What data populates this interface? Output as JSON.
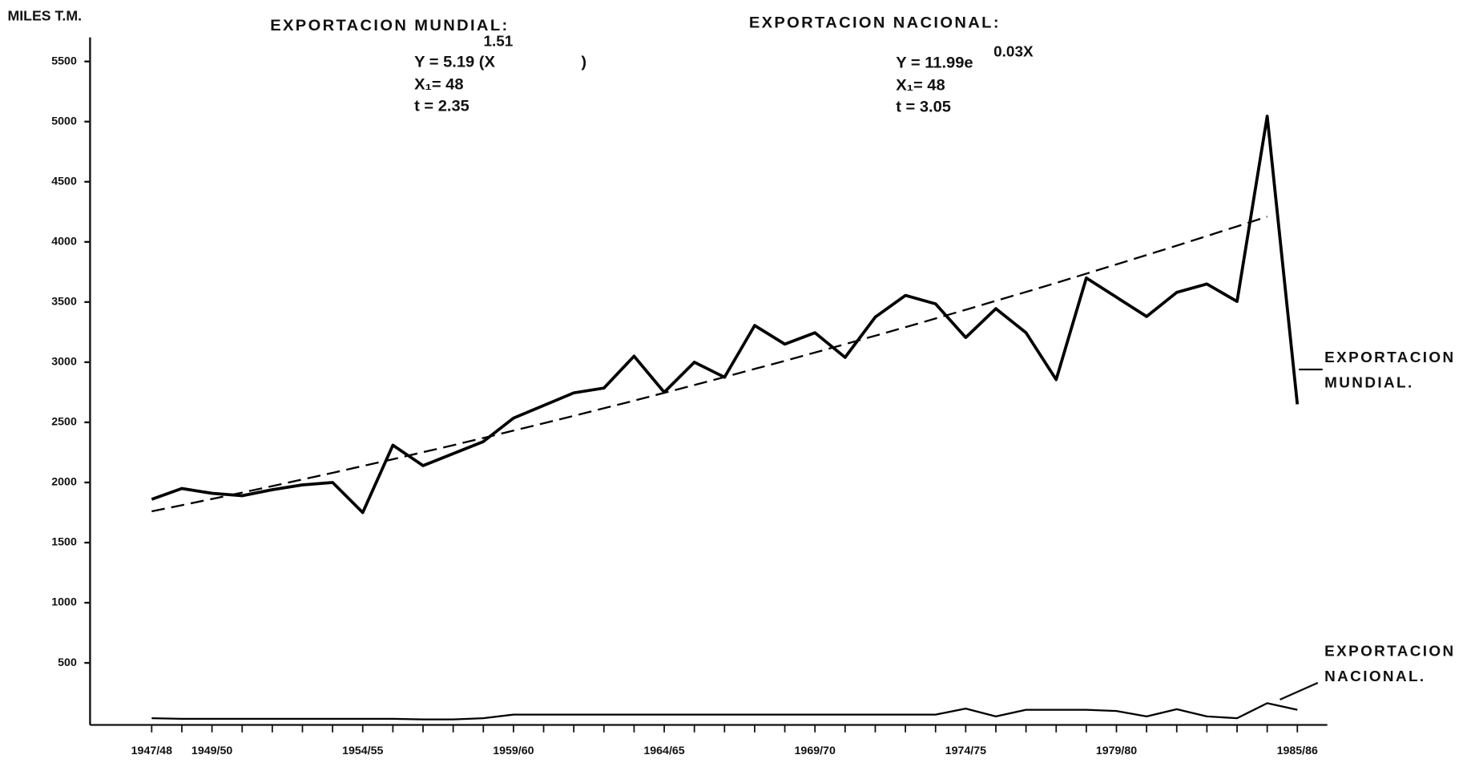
{
  "chart_data": {
    "type": "line",
    "y_label": "MILES T.M.",
    "categories": [
      "1947/48",
      null,
      "1949/50",
      null,
      null,
      null,
      null,
      "1954/55",
      null,
      null,
      null,
      null,
      "1959/60",
      null,
      null,
      null,
      null,
      "1964/65",
      null,
      null,
      null,
      null,
      "1969/70",
      null,
      null,
      null,
      null,
      "1974/75",
      null,
      null,
      null,
      null,
      "1979/80",
      null,
      null,
      null,
      null,
      null,
      "1985/86"
    ],
    "ylim": [
      0,
      5700
    ],
    "yticks": [
      500,
      1000,
      1500,
      2000,
      2500,
      3000,
      3500,
      4000,
      4500,
      5000,
      5500
    ],
    "series": [
      {
        "label_lines": [
          "EXPORTACION",
          "MUNDIAL."
        ],
        "color": "#000000",
        "style": "solid",
        "width": 3.2,
        "values": [
          1860,
          1950,
          1910,
          1890,
          1940,
          1980,
          2000,
          1750,
          2310,
          2140,
          2240,
          2340,
          2535,
          2640,
          2745,
          2785,
          3050,
          2750,
          3000,
          2875,
          3305,
          3150,
          3245,
          3040,
          3375,
          3555,
          3485,
          3205,
          3445,
          3245,
          2855,
          3700,
          3540,
          3380,
          3580,
          3650,
          3505,
          5045,
          2650
        ]
      },
      {
        "color": "#000000",
        "style": "dashed",
        "width": 2,
        "values": [
          1760,
          1811,
          1863,
          1916,
          1970,
          2025,
          2080,
          2137,
          2193,
          2252,
          2310,
          2370,
          2431,
          2492,
          2554,
          2617,
          2680,
          2745,
          2810,
          2876,
          2944,
          3011,
          3080,
          3150,
          3220,
          3291,
          3363,
          3436,
          3510,
          3584,
          3659,
          3736,
          3813,
          3891,
          3969,
          4049,
          4129,
          4210,
          null
        ]
      },
      {
        "label_lines": [
          "EXPORTACION",
          "NACIONAL."
        ],
        "color": "#000000",
        "style": "solid",
        "width": 2,
        "values": [
          40,
          35,
          35,
          35,
          35,
          35,
          35,
          35,
          35,
          30,
          30,
          40,
          70,
          70,
          70,
          70,
          70,
          70,
          70,
          70,
          70,
          70,
          70,
          70,
          70,
          70,
          70,
          120,
          55,
          110,
          110,
          110,
          100,
          55,
          115,
          55,
          40,
          165,
          110
        ]
      }
    ],
    "annotations": [
      {
        "title": "EXPORTACION MUNDIAL:",
        "equation": "Y = 5.19 (X",
        "exponent": "1.51",
        "close": ")",
        "lines": [
          "X₁= 48",
          "t = 2.35"
        ]
      },
      {
        "title": "EXPORTACION NACIONAL:",
        "equation": "Y = 11.99e",
        "exponent": "0.03X",
        "lines": [
          "X₁= 48",
          "t = 3.05"
        ]
      }
    ]
  }
}
